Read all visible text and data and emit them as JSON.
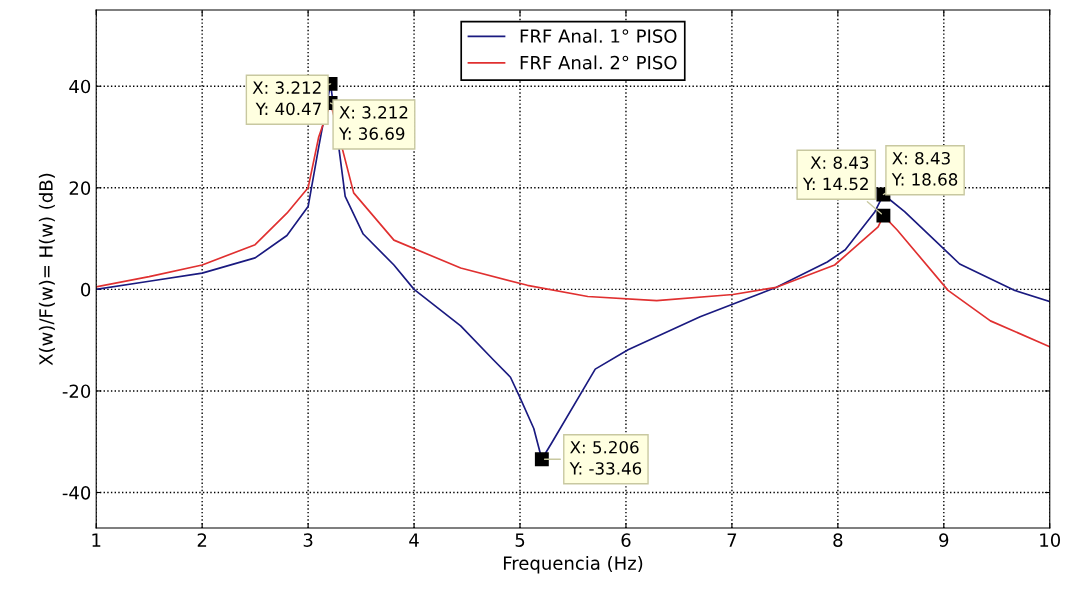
{
  "chart_data": {
    "type": "line",
    "xlabel": "Frequencia (Hz)",
    "ylabel": "X(w)/F(w)= H(w) (dB)",
    "xlim": [
      1,
      10
    ],
    "ylim": [
      -47,
      55
    ],
    "xticks": [
      1,
      2,
      3,
      4,
      5,
      6,
      7,
      8,
      9,
      10
    ],
    "yticks": [
      -40,
      -20,
      0,
      20,
      40
    ],
    "grid": true,
    "legend": "top",
    "marker": "none",
    "line_style": "solid",
    "series": [
      {
        "name": "FRF Anal. 1° PISO",
        "color": "#1a1a80",
        "x": [
          1,
          1.5,
          2,
          2.5,
          2.8,
          3,
          3.1,
          3.212,
          3.35,
          3.52,
          3.81,
          4.0,
          4.44,
          4.75,
          4.91,
          5.0,
          5.13,
          5.206,
          5.3,
          5.71,
          6.02,
          6.7,
          7.42,
          7.9,
          8.07,
          8.35,
          8.43,
          8.63,
          9.15,
          9.67,
          10
        ],
        "values": [
          0,
          1.6,
          3.2,
          6.2,
          10.6,
          16.3,
          28,
          40.47,
          18.3,
          10.9,
          4.8,
          0,
          -7.2,
          -13.9,
          -17.3,
          -21.3,
          -27.4,
          -33.46,
          -30.2,
          -15.7,
          -11.9,
          -5.4,
          0.4,
          5.4,
          7.8,
          15.3,
          18.68,
          15.3,
          5.0,
          -0.2,
          -2.4
        ]
      },
      {
        "name": "FRF Anal. 2° PISO",
        "color": "#e03030",
        "x": [
          1,
          1.5,
          2,
          2.5,
          2.8,
          3,
          3.1,
          3.212,
          3.43,
          3.81,
          4.44,
          5.07,
          5.64,
          6.29,
          7.01,
          7.42,
          7.97,
          8.38,
          8.43,
          8.56,
          9.04,
          9.44,
          10
        ],
        "values": [
          0.5,
          2.5,
          4.8,
          8.8,
          15,
          20,
          30,
          36.69,
          19,
          9.7,
          4.2,
          0.8,
          -1.4,
          -2.2,
          -1.0,
          0.4,
          4.8,
          12.3,
          14.52,
          11.7,
          -0.2,
          -6.2,
          -11.3
        ]
      }
    ],
    "annotations": [
      {
        "text": "X: 3.212\nY: 40.47",
        "x": 3.212,
        "y": 40.47
      },
      {
        "text": "X: 3.212\nY: 36.69",
        "x": 3.212,
        "y": 36.69
      },
      {
        "text": "X: 5.206\nY: -33.46",
        "x": 5.206,
        "y": -33.46
      },
      {
        "text": "X: 8.43\nY: 14.52",
        "x": 8.43,
        "y": 14.52
      },
      {
        "text": "X: 8.43\nY: 18.68",
        "x": 8.43,
        "y": 18.68
      }
    ]
  }
}
